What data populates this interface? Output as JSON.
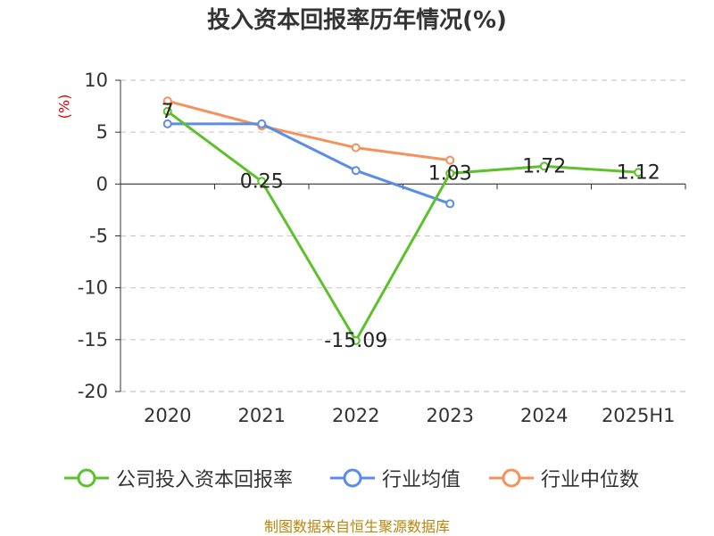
{
  "chart_data": {
    "type": "line",
    "title": "投入资本回报率历年情况(%)",
    "unit_label": "(%)",
    "categories": [
      "2020",
      "2021",
      "2022",
      "2023",
      "2024",
      "2025H1"
    ],
    "ylim": [
      -20,
      10
    ],
    "yticks": [
      10,
      5,
      0,
      -5,
      -10,
      -15,
      -20
    ],
    "grid": true,
    "legend_position": "bottom",
    "series": [
      {
        "name": "公司投入资本回报率",
        "color": "#5cc12b",
        "values": [
          7,
          0.25,
          -15.09,
          1.03,
          1.72,
          1.12
        ],
        "labels": [
          "7",
          "0.25",
          "-15.09",
          "1.03",
          "1.72",
          "1.12"
        ]
      },
      {
        "name": "行业均值",
        "color": "#5b8ce8",
        "values": [
          5.8,
          5.8,
          1.3,
          -1.9,
          null,
          null
        ],
        "labels": []
      },
      {
        "name": "行业中位数",
        "color": "#f5915a",
        "values": [
          8,
          5.6,
          3.5,
          2.3,
          null,
          null
        ],
        "labels": []
      }
    ]
  },
  "source": "制图数据来自恒生聚源数据库"
}
